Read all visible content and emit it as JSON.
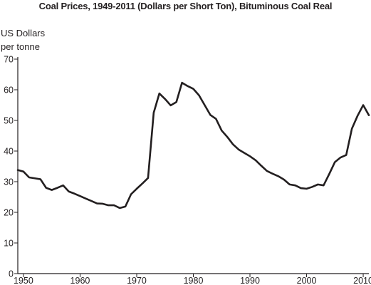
{
  "chart_data": {
    "type": "line",
    "title": "Coal Prices, 1949-2011 (Dollars per Short Ton), Bituminous Coal Real",
    "ylabel_lines": [
      "US Dollars",
      "per tonne"
    ],
    "xlabel": "",
    "xlim": [
      1949,
      2011
    ],
    "ylim": [
      0,
      70
    ],
    "x_ticks": [
      1950,
      1960,
      1970,
      1980,
      1990,
      2000,
      2010
    ],
    "y_ticks": [
      0,
      10,
      20,
      30,
      40,
      50,
      60,
      70
    ],
    "grid": false,
    "legend": "none",
    "line_color": "#231f20",
    "series": [
      {
        "x": [
          1949,
          1950,
          1951,
          1952,
          1953,
          1954,
          1955,
          1956,
          1957,
          1958,
          1959,
          1960,
          1961,
          1962,
          1963,
          1964,
          1965,
          1966,
          1967,
          1968,
          1969,
          1970,
          1971,
          1972,
          1973,
          1974,
          1975,
          1976,
          1977,
          1978,
          1979,
          1980,
          1981,
          1982,
          1983,
          1984,
          1985,
          1986,
          1987,
          1988,
          1989,
          1990,
          1991,
          1992,
          1993,
          1994,
          1995,
          1996,
          1997,
          1998,
          1999,
          2000,
          2001,
          2002,
          2003,
          2004,
          2005,
          2006,
          2007,
          2008,
          2009,
          2010,
          2011
        ],
        "values": [
          33.8,
          33.3,
          31.4,
          31.1,
          30.8,
          28.0,
          27.3,
          28.0,
          28.8,
          26.8,
          26.1,
          25.3,
          24.5,
          23.7,
          22.9,
          22.8,
          22.3,
          22.3,
          21.4,
          21.9,
          25.9,
          27.7,
          29.4,
          31.2,
          52.5,
          58.8,
          57.0,
          54.9,
          56.0,
          62.3,
          61.2,
          60.3,
          58.2,
          55.0,
          51.8,
          50.5,
          46.7,
          44.6,
          42.2,
          40.5,
          39.4,
          38.3,
          37.0,
          35.2,
          33.5,
          32.6,
          31.8,
          30.7,
          29.1,
          28.8,
          27.9,
          27.7,
          28.3,
          29.1,
          28.8,
          32.5,
          36.4,
          37.9,
          38.7,
          47.3,
          51.5,
          55.0,
          51.7
        ]
      }
    ]
  }
}
